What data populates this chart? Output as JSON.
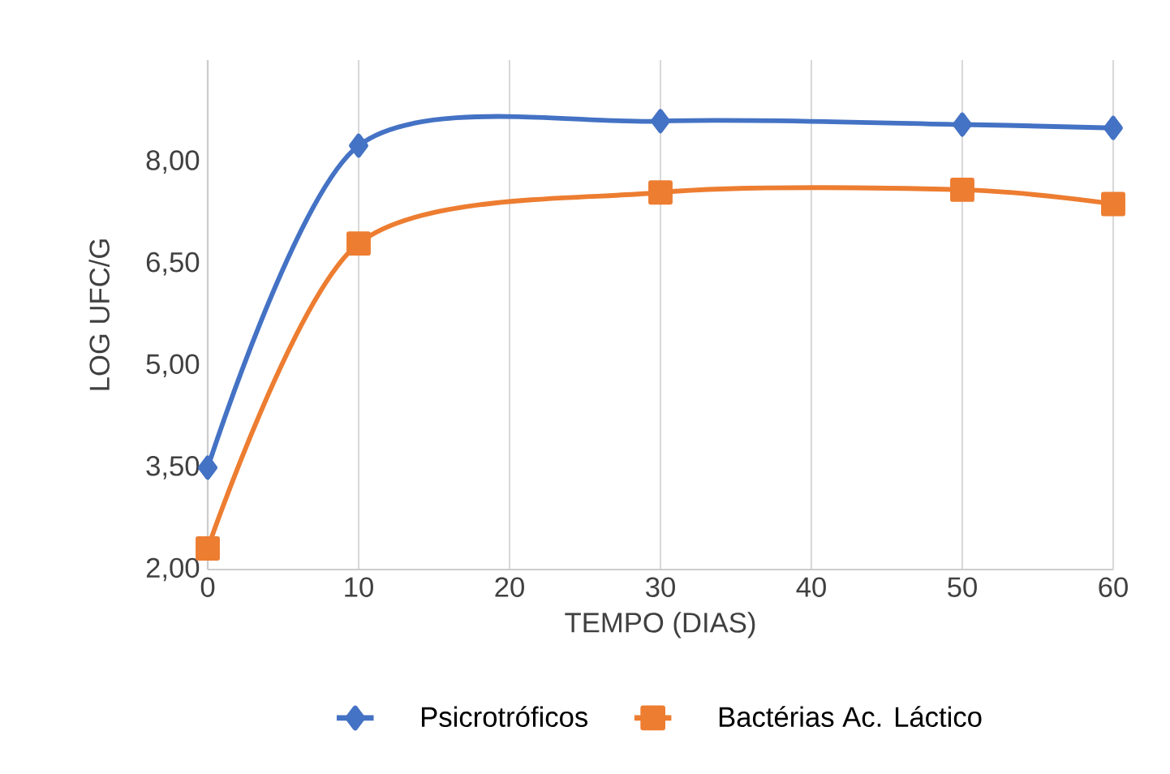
{
  "chart_data": {
    "type": "line",
    "xlabel": "TEMPO (DIAS)",
    "ylabel": "LOG UFC/G",
    "x": [
      0,
      10,
      30,
      50,
      60
    ],
    "series": [
      {
        "name": "Psicrotróficos",
        "color": "#4472c4",
        "marker": "diamond",
        "values": [
          3.5,
          8.24,
          8.6,
          8.55,
          8.5
        ]
      },
      {
        "name": "Bactérias Ac. Láctico",
        "color": "#ed7d31",
        "marker": "square",
        "values": [
          2.31,
          6.8,
          7.55,
          7.59,
          7.38
        ]
      }
    ],
    "xlim": [
      0,
      60
    ],
    "xticks": [
      0,
      10,
      20,
      30,
      40,
      50,
      60
    ],
    "ylim": [
      2,
      9.5
    ],
    "yticks": [
      {
        "value": 2,
        "label": "2,00"
      },
      {
        "value": 3.5,
        "label": "3,50"
      },
      {
        "value": 5,
        "label": "5,00"
      },
      {
        "value": 6.5,
        "label": "6,50"
      },
      {
        "value": 8,
        "label": "8,00"
      }
    ],
    "grid": "x",
    "legend": "bottom",
    "line_style": "solid"
  }
}
